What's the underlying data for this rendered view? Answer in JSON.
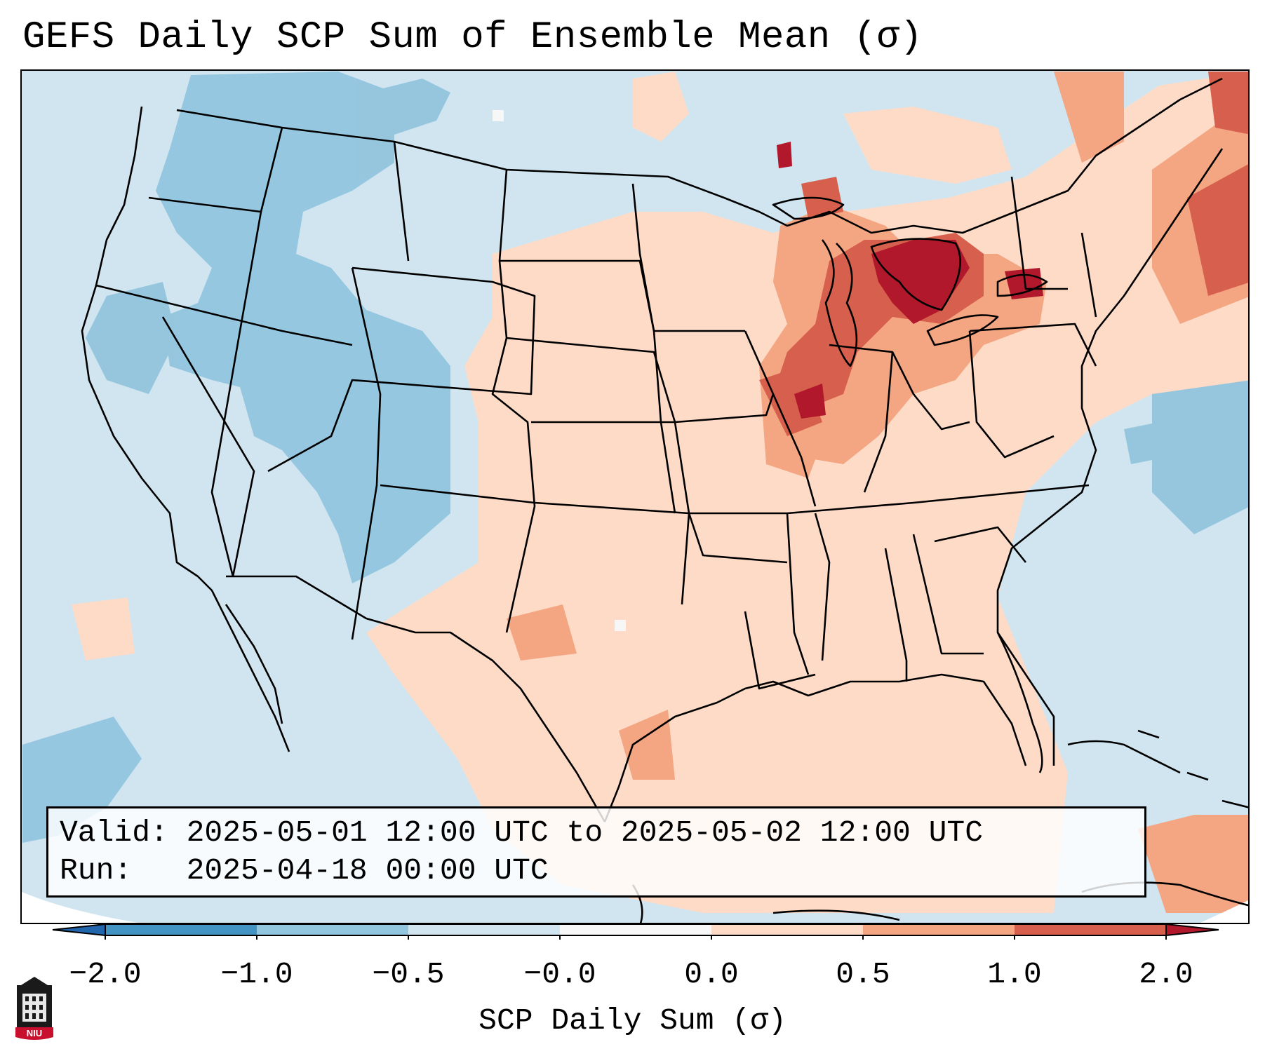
{
  "title": "GEFS Daily SCP Sum of Ensemble Mean (σ)",
  "info": {
    "valid_line": "Valid: 2025-05-01 12:00 UTC to 2025-05-02 12:00 UTC",
    "run_line": "Run:   2025-04-18 00:00 UTC"
  },
  "colorbar": {
    "label": "SCP Daily Sum (σ)",
    "ticks": [
      "−2.0",
      "−1.0",
      "−0.5",
      "−0.0",
      "0.0",
      "0.5",
      "1.0",
      "2.0"
    ],
    "bins": [
      {
        "range": "< -2.0",
        "color": "#2166ac"
      },
      {
        "range": "-2.0 to -1.0",
        "color": "#4393c3"
      },
      {
        "range": "-1.0 to -0.5",
        "color": "#92c5de"
      },
      {
        "range": "-0.5 to -0.0",
        "color": "#d1e5f0"
      },
      {
        "range": "-0.0 to 0.0",
        "color": "#f7f7f7"
      },
      {
        "range": "0.0 to 0.5",
        "color": "#fddbc7"
      },
      {
        "range": "0.5 to 1.0",
        "color": "#f4a582"
      },
      {
        "range": "1.0 to 2.0",
        "color": "#d6604d"
      },
      {
        "range": "> 2.0",
        "color": "#b2182b"
      }
    ]
  },
  "map": {
    "projection": "Lambert Conformal",
    "region": "Contiguous United States",
    "background_color": "#d1e5f0",
    "colors": {
      "light_blue": "#d1e5f0",
      "mid_blue": "#92c5de",
      "light_red": "#fddbc7",
      "mid_red": "#f4a582",
      "strong_red": "#d6604d",
      "dark_red": "#b2182b",
      "border": "#000000"
    }
  },
  "logo": {
    "text": "NIU"
  }
}
